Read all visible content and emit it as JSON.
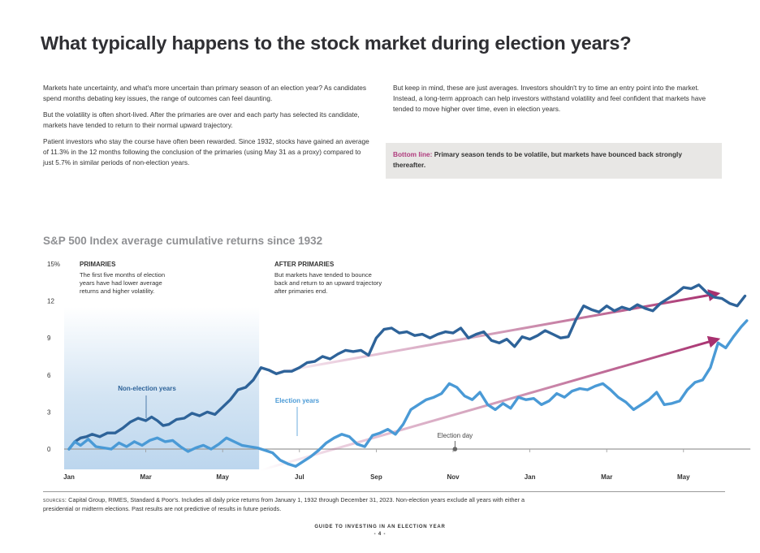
{
  "page": {
    "title": "What typically happens to the stock market during election years?",
    "left_column": [
      "Markets hate uncertainty, and what's more uncertain than primary season of an election year? As candidates spend months debating key issues, the range of outcomes can feel daunting.",
      "But the volatility is often short-lived. After the primaries are over and each party has selected its candidate, markets have tended to return to their normal upward trajectory.",
      "Patient investors who stay the course have often been rewarded. Since 1932, stocks have gained an average of 11.3% in the 12 months following the conclusion of the primaries (using May 31 as a proxy) compared to just 5.7% in similar periods of non-election years."
    ],
    "right_column": [
      "But keep in mind, these are just averages. Investors shouldn't try to time an entry point into the market. Instead, a long-term approach can help investors withstand volatility and feel confident that markets have tended to move higher over time, even in election years."
    ],
    "callout": {
      "lead": "Bottom line:",
      "text": " Primary season tends to be volatile, but markets have bounced back strongly thereafter.",
      "lead_color": "#b03c7e"
    },
    "sources": {
      "label": "SOURCES:",
      "line1": " Capital Group, RIMES, Standard & Poor's. Includes all daily price returns from January 1, 1932 through December 31, 2023. Non-election years exclude all years with either a",
      "line2": "presidential or midterm elections. Past results are not predictive of results in future periods."
    },
    "footer": {
      "guide": "GUIDE TO INVESTING IN AN ELECTION YEAR",
      "page_number": "- 4 -"
    }
  },
  "chart_data": {
    "type": "line",
    "title": "S&P 500 Index average cumulative returns since 1932",
    "xlabel": "",
    "ylabel": "",
    "y_unit_suffix": "%",
    "ylim": [
      -1.5,
      15
    ],
    "xlim_months": [
      0,
      17.7
    ],
    "yticks": [
      0,
      3,
      6,
      9,
      12,
      15
    ],
    "ytick_labels": [
      "0",
      "3",
      "6",
      "9",
      "12",
      "15%"
    ],
    "xticks_months": [
      0,
      2,
      4,
      6,
      8,
      10,
      12,
      14,
      16
    ],
    "xtick_labels": [
      "Jan",
      "Mar",
      "May",
      "Jul",
      "Sep",
      "Nov",
      "Jan",
      "Mar",
      "May"
    ],
    "grid": false,
    "legend": "inline labels",
    "shaded_region": {
      "label": "Primaries",
      "from_month": 0,
      "to_month": 4.95,
      "color": "#c3dbf0"
    },
    "annotations": [
      {
        "heading": "PRIMARIES",
        "lines": [
          "The first five months of election",
          "years have had lower average",
          "returns and higher volatility."
        ]
      },
      {
        "heading": "AFTER PRIMARIES",
        "lines": [
          "But markets have tended to bounce",
          "back and return to an upward trajectory",
          "after primaries end."
        ]
      }
    ],
    "marker": {
      "label": "Election day",
      "month": 10.05,
      "value": 0
    },
    "series": [
      {
        "name": "Non-election years",
        "color": "#2e6399",
        "x": [
          0,
          0.15,
          0.3,
          0.45,
          0.6,
          0.8,
          1.0,
          1.2,
          1.4,
          1.6,
          1.8,
          2.0,
          2.15,
          2.3,
          2.45,
          2.6,
          2.8,
          3.0,
          3.2,
          3.4,
          3.6,
          3.8,
          4.0,
          4.2,
          4.4,
          4.6,
          4.8,
          5.0,
          5.2,
          5.4,
          5.6,
          5.8,
          6.0,
          6.2,
          6.4,
          6.6,
          6.8,
          7.0,
          7.2,
          7.4,
          7.6,
          7.8,
          8.0,
          8.2,
          8.4,
          8.6,
          8.8,
          9.0,
          9.2,
          9.4,
          9.6,
          9.8,
          10.0,
          10.2,
          10.4,
          10.6,
          10.8,
          11.0,
          11.2,
          11.4,
          11.6,
          11.8,
          12.0,
          12.2,
          12.4,
          12.6,
          12.8,
          13.0,
          13.2,
          13.4,
          13.6,
          13.8,
          14.0,
          14.2,
          14.4,
          14.6,
          14.8,
          15.0,
          15.2,
          15.4,
          15.6,
          15.8,
          16.0,
          16.2,
          16.4,
          16.6,
          16.8,
          17.0,
          17.2,
          17.4,
          17.6
        ],
        "values": [
          0,
          0.6,
          0.9,
          1.0,
          1.2,
          1.0,
          1.3,
          1.3,
          1.7,
          2.2,
          2.5,
          2.3,
          2.6,
          2.3,
          1.9,
          2.0,
          2.4,
          2.5,
          2.9,
          2.7,
          3.0,
          2.8,
          3.4,
          4.0,
          4.8,
          5.0,
          5.6,
          6.6,
          6.4,
          6.1,
          6.3,
          6.3,
          6.6,
          7.0,
          7.1,
          7.5,
          7.3,
          7.7,
          8.0,
          7.9,
          8.0,
          7.6,
          9.0,
          9.7,
          9.8,
          9.4,
          9.5,
          9.2,
          9.3,
          9.0,
          9.3,
          9.5,
          9.4,
          9.8,
          9.0,
          9.3,
          9.5,
          8.8,
          8.6,
          8.9,
          8.3,
          9.1,
          8.9,
          9.2,
          9.6,
          9.3,
          9.0,
          9.1,
          10.5,
          11.6,
          11.3,
          11.1,
          11.6,
          11.2,
          11.5,
          11.3,
          11.7,
          11.4,
          11.2,
          11.8,
          12.2,
          12.6,
          13.1,
          13.0,
          13.3,
          12.7,
          12.3,
          12.2,
          11.8,
          11.6,
          12.4
        ]
      },
      {
        "name": "Election years",
        "color": "#4a9ad6",
        "x": [
          0,
          0.15,
          0.3,
          0.5,
          0.7,
          0.9,
          1.1,
          1.3,
          1.5,
          1.7,
          1.9,
          2.1,
          2.3,
          2.5,
          2.7,
          2.9,
          3.1,
          3.3,
          3.5,
          3.7,
          3.9,
          4.1,
          4.3,
          4.5,
          4.7,
          4.9,
          5.1,
          5.3,
          5.5,
          5.7,
          5.9,
          6.1,
          6.3,
          6.5,
          6.7,
          6.9,
          7.1,
          7.3,
          7.5,
          7.7,
          7.9,
          8.1,
          8.3,
          8.5,
          8.7,
          8.9,
          9.1,
          9.3,
          9.5,
          9.7,
          9.9,
          10.1,
          10.3,
          10.5,
          10.7,
          10.9,
          11.1,
          11.3,
          11.5,
          11.7,
          11.9,
          12.1,
          12.3,
          12.5,
          12.7,
          12.9,
          13.1,
          13.3,
          13.5,
          13.7,
          13.9,
          14.1,
          14.3,
          14.5,
          14.7,
          14.9,
          15.1,
          15.3,
          15.5,
          15.7,
          15.9,
          16.1,
          16.3,
          16.5,
          16.7,
          16.9,
          17.1,
          17.3,
          17.5,
          17.65
        ],
        "values": [
          0,
          0.6,
          0.3,
          0.8,
          0.2,
          0.1,
          0.0,
          0.5,
          0.2,
          0.6,
          0.3,
          0.7,
          0.9,
          0.6,
          0.7,
          0.2,
          -0.2,
          0.1,
          0.3,
          0.0,
          0.4,
          0.9,
          0.6,
          0.3,
          0.2,
          0.1,
          -0.1,
          -0.3,
          -0.9,
          -1.2,
          -1.4,
          -1.0,
          -0.6,
          -0.1,
          0.5,
          0.9,
          1.2,
          1.0,
          0.4,
          0.2,
          1.1,
          1.3,
          1.6,
          1.2,
          2.0,
          3.2,
          3.6,
          4.0,
          4.2,
          4.5,
          5.3,
          5.0,
          4.3,
          4.0,
          4.6,
          3.6,
          3.2,
          3.7,
          3.3,
          4.2,
          4.0,
          4.1,
          3.6,
          3.9,
          4.5,
          4.2,
          4.7,
          4.9,
          4.8,
          5.1,
          5.3,
          4.8,
          4.2,
          3.8,
          3.2,
          3.6,
          4.0,
          4.6,
          3.6,
          3.7,
          3.9,
          4.8,
          5.4,
          5.6,
          6.6,
          8.6,
          8.2,
          9.1,
          9.9,
          10.4
        ]
      }
    ],
    "trend_arrows": [
      {
        "from_month": 5.0,
        "from_value": 6.0,
        "to_month": 16.9,
        "to_value": 12.6,
        "color": "#b03c7e"
      },
      {
        "from_month": 5.0,
        "from_value": -1.7,
        "to_month": 16.9,
        "to_value": 8.9,
        "color": "#b03c7e"
      }
    ]
  }
}
